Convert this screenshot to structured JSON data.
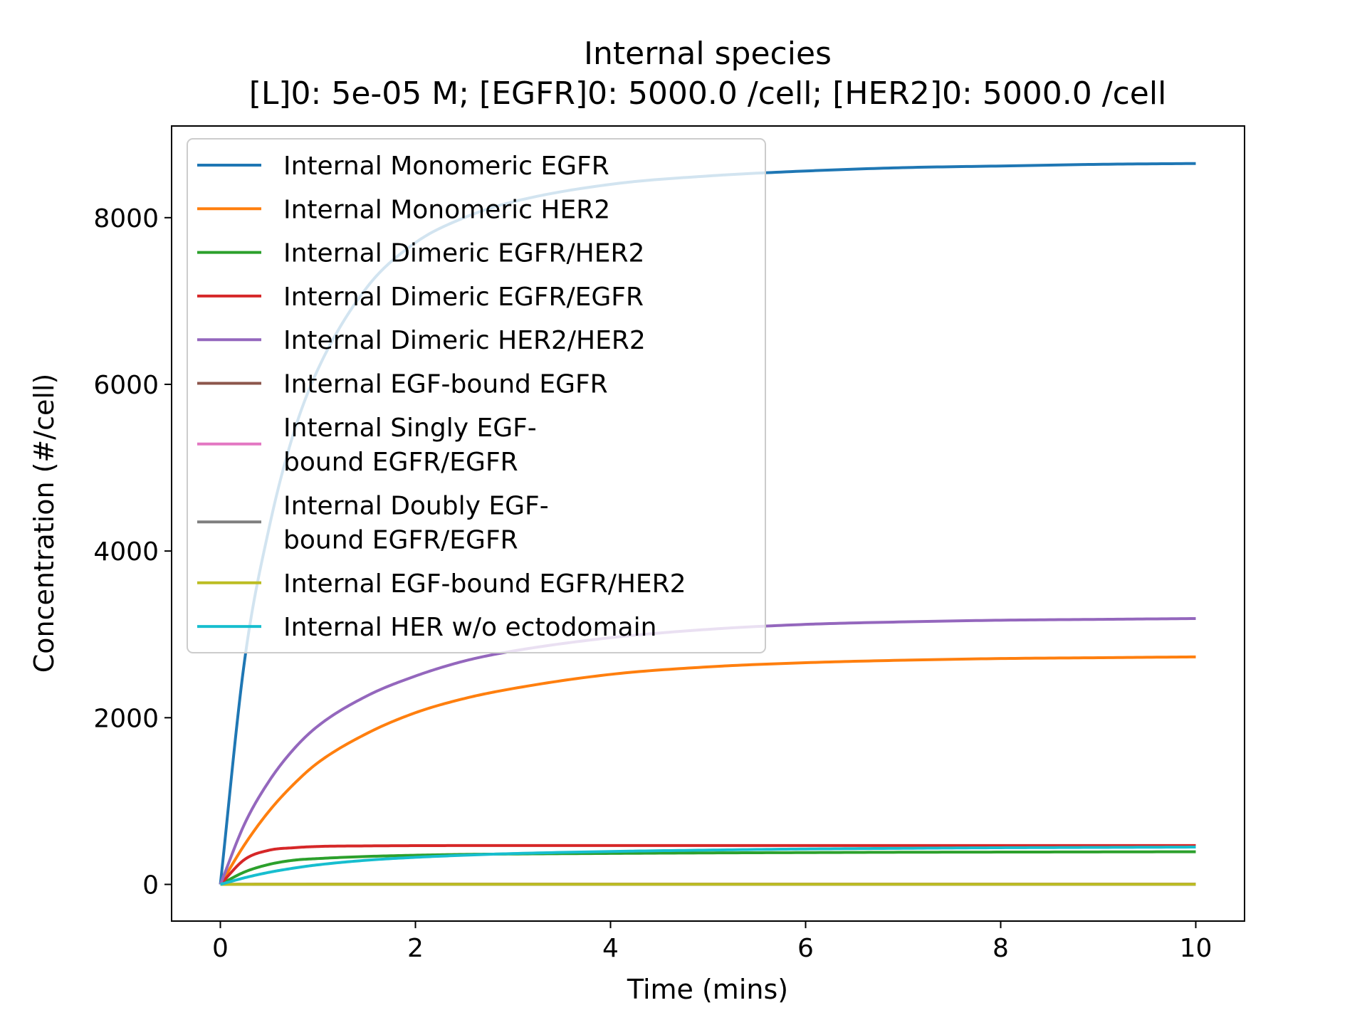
{
  "chart_data": {
    "type": "line",
    "title": "Internal species",
    "subtitle": "[L]0: 5e-05 M; [EGFR]0: 5000.0 /cell; [HER2]0: 5000.0 /cell",
    "xlabel": "Time (mins)",
    "ylabel": "Concentration (#/cell)",
    "xlim": [
      -0.5,
      10.5
    ],
    "ylim": [
      -440,
      9100
    ],
    "xticks": [
      0,
      2,
      4,
      6,
      8,
      10
    ],
    "xtick_labels": [
      "0",
      "2",
      "4",
      "6",
      "8",
      "10"
    ],
    "yticks": [
      0,
      2000,
      4000,
      6000,
      8000
    ],
    "ytick_labels": [
      "0",
      "2000",
      "4000",
      "6000",
      "8000"
    ],
    "grid": false,
    "legend_position": "upper-left",
    "x": [
      0,
      0.25,
      0.5,
      0.75,
      1,
      1.5,
      2,
      2.5,
      3,
      4,
      5,
      6,
      7,
      8,
      9,
      10
    ],
    "series": [
      {
        "name": "Internal Monomeric EGFR",
        "color": "#1f77b4",
        "values": [
          0,
          2700,
          4280,
          5410,
          6180,
          7160,
          7700,
          8000,
          8190,
          8400,
          8500,
          8560,
          8600,
          8620,
          8640,
          8650
        ]
      },
      {
        "name": "Internal Monomeric HER2",
        "color": "#ff7f0e",
        "values": [
          0,
          480,
          880,
          1200,
          1460,
          1810,
          2060,
          2230,
          2350,
          2520,
          2610,
          2660,
          2690,
          2710,
          2720,
          2730
        ]
      },
      {
        "name": "Internal Dimeric EGFR/HER2",
        "color": "#2ca02c",
        "values": [
          0,
          150,
          240,
          290,
          310,
          335,
          350,
          360,
          365,
          372,
          378,
          382,
          386,
          388,
          390,
          392
        ]
      },
      {
        "name": "Internal Dimeric EGFR/EGFR",
        "color": "#d62728",
        "values": [
          0,
          300,
          410,
          440,
          455,
          462,
          465,
          466,
          466,
          466,
          466,
          466,
          466,
          466,
          466,
          466
        ]
      },
      {
        "name": "Internal Dimeric HER2/HER2",
        "color": "#9467bd",
        "values": [
          0,
          730,
          1240,
          1620,
          1900,
          2260,
          2500,
          2680,
          2800,
          2960,
          3060,
          3120,
          3150,
          3170,
          3180,
          3190
        ]
      },
      {
        "name": "Internal EGF-bound EGFR",
        "color": "#8c564b",
        "values": [
          0,
          2,
          3,
          3,
          4,
          4,
          4,
          4,
          4,
          4,
          4,
          4,
          4,
          4,
          4,
          4
        ]
      },
      {
        "name": "Internal Singly EGF-\nbound EGFR/EGFR",
        "color": "#e377c2",
        "values": [
          0,
          1,
          2,
          2,
          2,
          2,
          2,
          2,
          2,
          2,
          2,
          2,
          2,
          2,
          2,
          2
        ]
      },
      {
        "name": "Internal Doubly EGF-\nbound EGFR/EGFR",
        "color": "#7f7f7f",
        "values": [
          0,
          1,
          1,
          1,
          1,
          1,
          1,
          1,
          1,
          1,
          1,
          1,
          1,
          1,
          1,
          1
        ]
      },
      {
        "name": "Internal EGF-bound EGFR/HER2",
        "color": "#bcbd22",
        "values": [
          0,
          1,
          2,
          2,
          2,
          2,
          2,
          2,
          2,
          2,
          2,
          2,
          2,
          2,
          2,
          2
        ]
      },
      {
        "name": "Internal HER w/o ectodomain",
        "color": "#17becf",
        "values": [
          0,
          80,
          145,
          195,
          235,
          290,
          325,
          350,
          370,
          395,
          412,
          425,
          433,
          440,
          444,
          448
        ]
      }
    ]
  }
}
